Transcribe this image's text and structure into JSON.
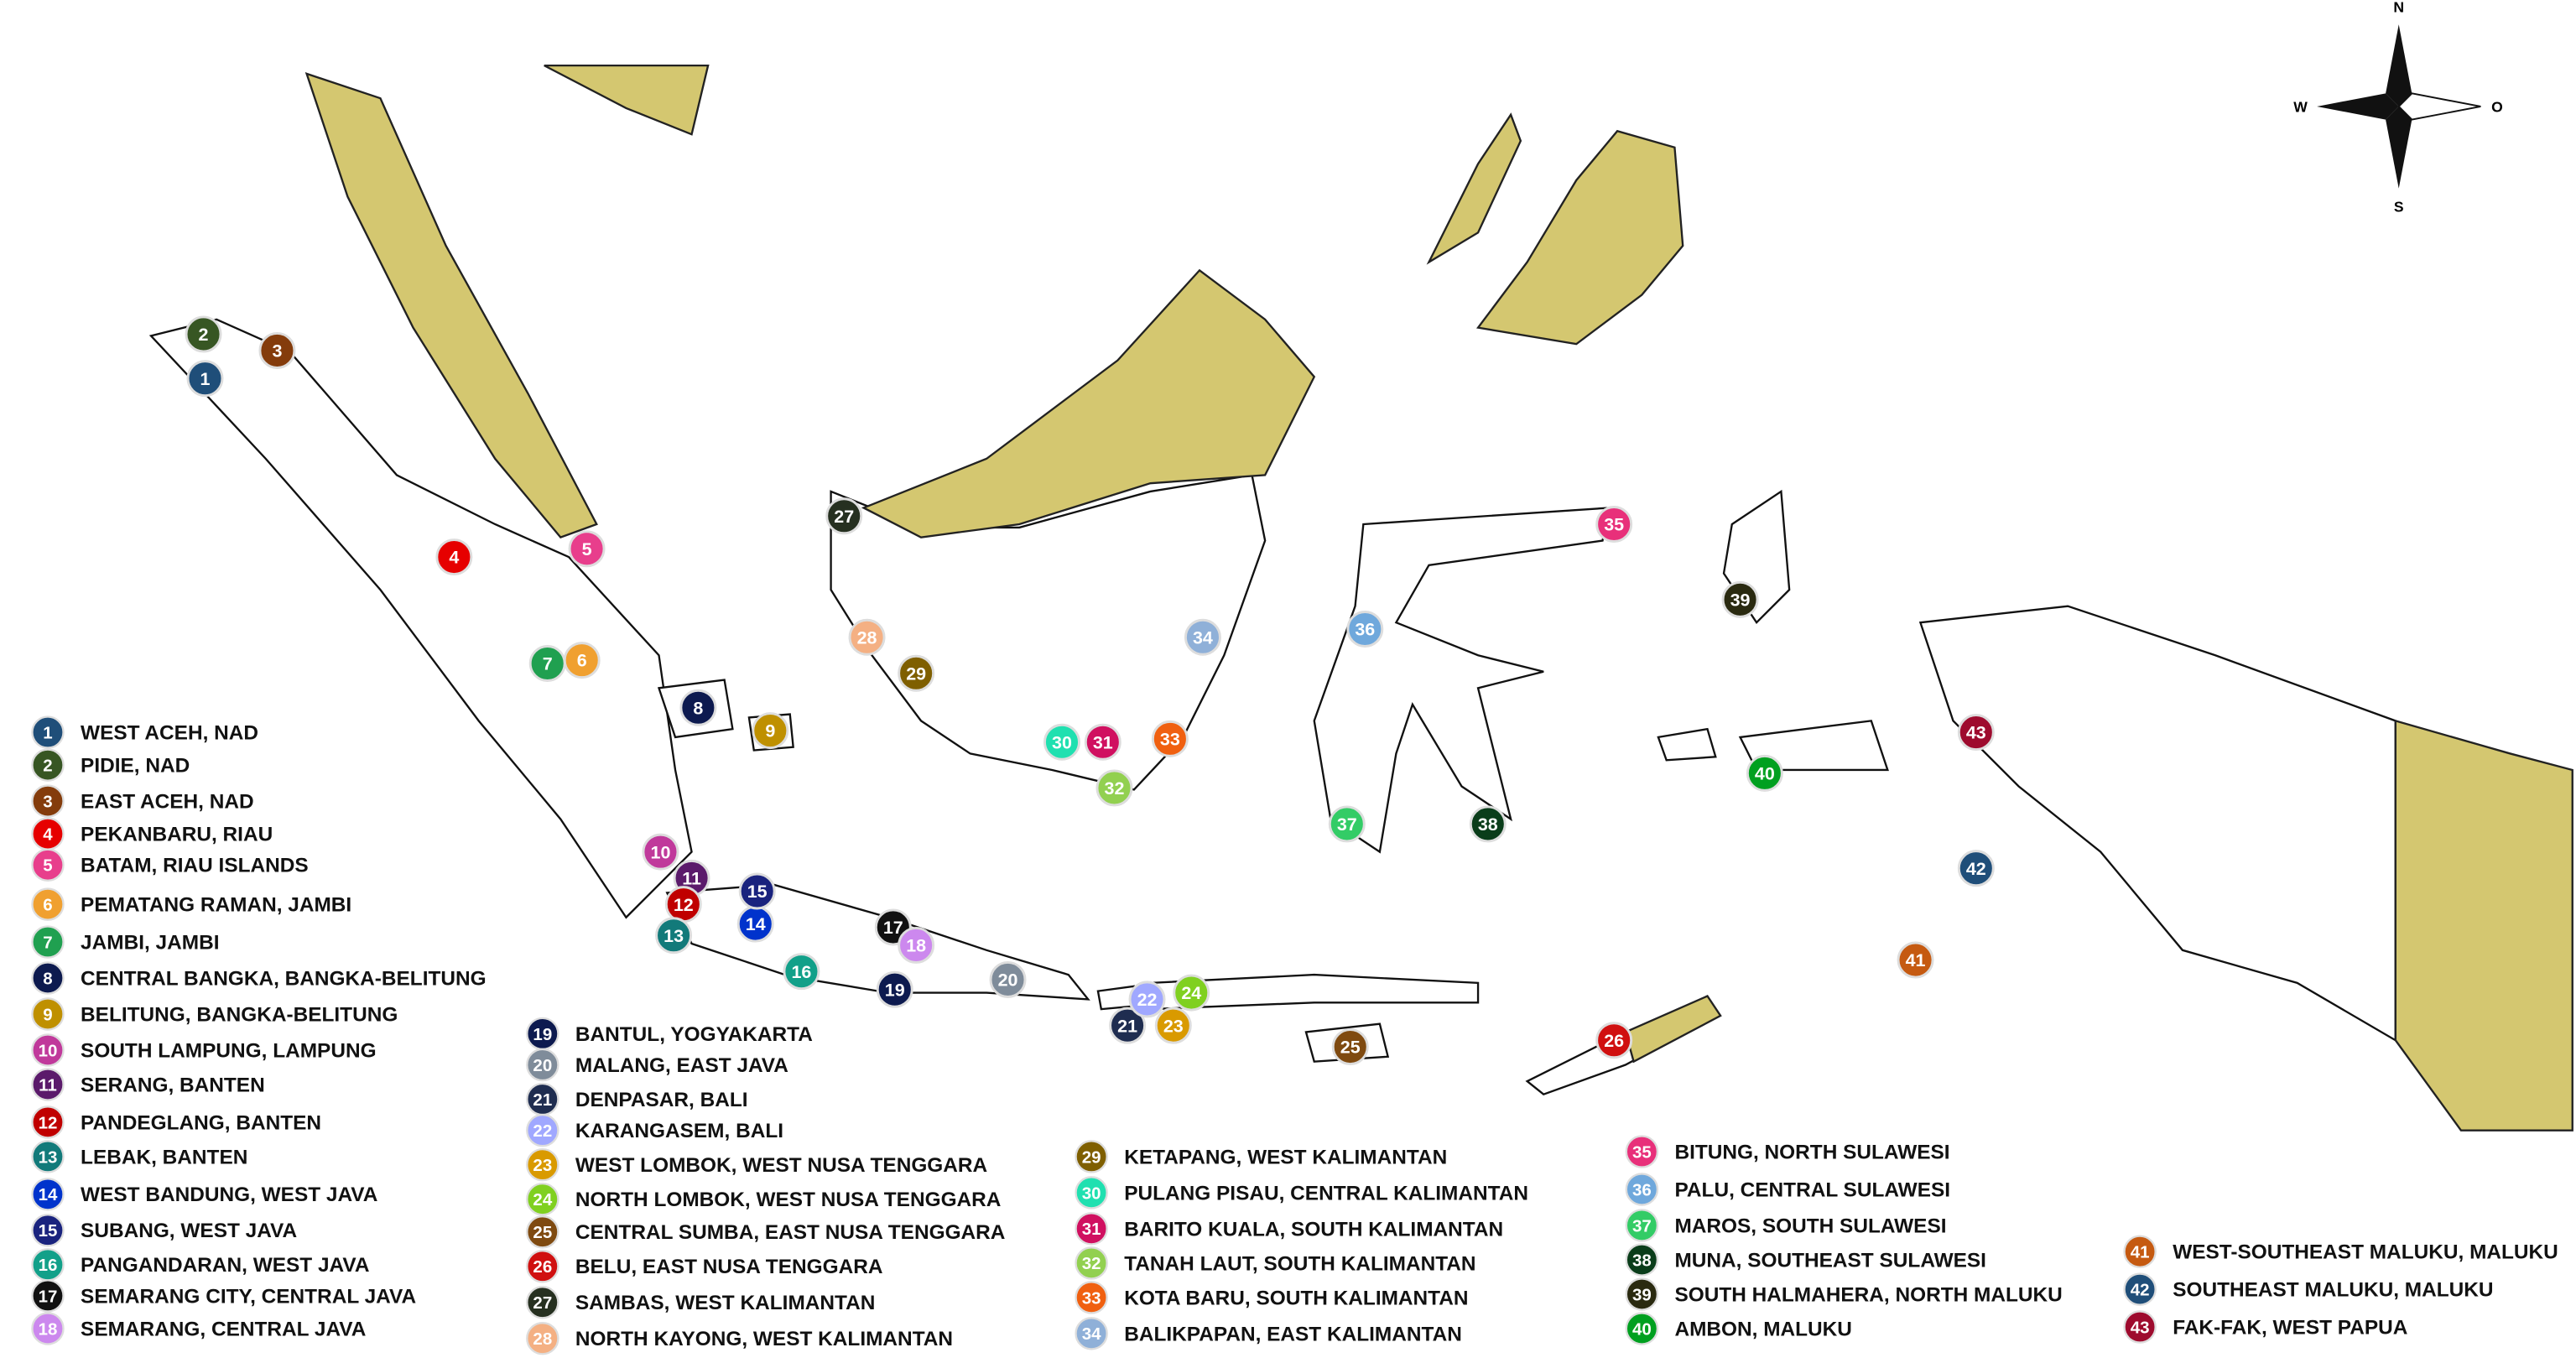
{
  "compass": {
    "north": "N",
    "west": "W",
    "east": "O",
    "south": "S"
  },
  "locations": [
    {
      "number": 1,
      "name": "WEST ACEH, NAD",
      "color": "#1f4e79"
    },
    {
      "number": 2,
      "name": "PIDIE, NAD",
      "color": "#375623"
    },
    {
      "number": 3,
      "name": "EAST ACEH, NAD",
      "color": "#843c0c"
    },
    {
      "number": 4,
      "name": "PEKANBARU, RIAU",
      "color": "#e60000"
    },
    {
      "number": 5,
      "name": "BATAM, RIAU ISLANDS",
      "color": "#e83e8c"
    },
    {
      "number": 6,
      "name": "PEMATANG RAMAN, JAMBI",
      "color": "#f0a030"
    },
    {
      "number": 7,
      "name": "JAMBI, JAMBI",
      "color": "#20a050"
    },
    {
      "number": 8,
      "name": "CENTRAL BANGKA, BANGKA-BELITUNG",
      "color": "#0d1a4f"
    },
    {
      "number": 9,
      "name": "BELITUNG, BANGKA-BELITUNG",
      "color": "#bf9000"
    },
    {
      "number": 10,
      "name": "SOUTH LAMPUNG, LAMPUNG",
      "color": "#c0399b"
    },
    {
      "number": 11,
      "name": "SERANG, BANTEN",
      "color": "#5b1a6b"
    },
    {
      "number": 12,
      "name": "PANDEGLANG, BANTEN",
      "color": "#c00000"
    },
    {
      "number": 13,
      "name": "LEBAK, BANTEN",
      "color": "#127a7a"
    },
    {
      "number": 14,
      "name": "WEST BANDUNG, WEST JAVA",
      "color": "#0033cc"
    },
    {
      "number": 15,
      "name": "SUBANG, WEST JAVA",
      "color": "#1a237e"
    },
    {
      "number": 16,
      "name": "PANGANDARAN, WEST JAVA",
      "color": "#12a089"
    },
    {
      "number": 17,
      "name": "SEMARANG CITY, CENTRAL JAVA",
      "color": "#111111"
    },
    {
      "number": 18,
      "name": "SEMARANG, CENTRAL JAVA",
      "color": "#cc88ee"
    },
    {
      "number": 19,
      "name": "BANTUL, YOGYAKARTA",
      "color": "#0d1a4f"
    },
    {
      "number": 20,
      "name": "MALANG, EAST JAVA",
      "color": "#7f8c9a"
    },
    {
      "number": 21,
      "name": "DENPASAR, BALI",
      "color": "#1f2d50"
    },
    {
      "number": 22,
      "name": "KARANGASEM, BALI",
      "color": "#a0a8ff"
    },
    {
      "number": 23,
      "name": "WEST LOMBOK, WEST NUSA TENGGARA",
      "color": "#d99a00"
    },
    {
      "number": 24,
      "name": "NORTH LOMBOK, WEST NUSA TENGGARA",
      "color": "#80d020"
    },
    {
      "number": 25,
      "name": "CENTRAL SUMBA, EAST NUSA TENGGARA",
      "color": "#7f4a10"
    },
    {
      "number": 26,
      "name": "BELU, EAST NUSA TENGGARA",
      "color": "#d01010"
    },
    {
      "number": 27,
      "name": "SAMBAS, WEST KALIMANTAN",
      "color": "#263020"
    },
    {
      "number": 28,
      "name": "NORTH KAYONG, WEST KALIMANTAN",
      "color": "#f4b083"
    },
    {
      "number": 29,
      "name": "KETAPANG, WEST KALIMANTAN",
      "color": "#7f5f00"
    },
    {
      "number": 30,
      "name": "PULANG PISAU, CENTRAL KALIMANTAN",
      "color": "#20e0b0"
    },
    {
      "number": 31,
      "name": "BARITO KUALA, SOUTH KALIMANTAN",
      "color": "#d01060"
    },
    {
      "number": 32,
      "name": "TANAH LAUT, SOUTH KALIMANTAN",
      "color": "#92d050"
    },
    {
      "number": 33,
      "name": "KOTA BARU, SOUTH KALIMANTAN",
      "color": "#f06010"
    },
    {
      "number": 34,
      "name": "BALIKPAPAN, EAST KALIMANTAN",
      "color": "#8fb0d8"
    },
    {
      "number": 35,
      "name": "BITUNG, NORTH SULAWESI",
      "color": "#e8307a"
    },
    {
      "number": 36,
      "name": "PALU, CENTRAL SULAWESI",
      "color": "#6fa8dc"
    },
    {
      "number": 37,
      "name": "MAROS, SOUTH SULAWESI",
      "color": "#33cc66"
    },
    {
      "number": 38,
      "name": "MUNA, SOUTHEAST SULAWESI",
      "color": "#0a3d1a"
    },
    {
      "number": 39,
      "name": "SOUTH HALMAHERA, NORTH MALUKU",
      "color": "#2a2a10"
    },
    {
      "number": 40,
      "name": "AMBON, MALUKU",
      "color": "#00a020"
    },
    {
      "number": 41,
      "name": "WEST-SOUTHEAST MALUKU, MALUKU",
      "color": "#c55a11"
    },
    {
      "number": 42,
      "name": "SOUTHEAST MALUKU, MALUKU",
      "color": "#1f4e79"
    },
    {
      "number": 43,
      "name": "FAK-FAK, WEST PAPUA",
      "color": "#9e0b2e"
    }
  ]
}
